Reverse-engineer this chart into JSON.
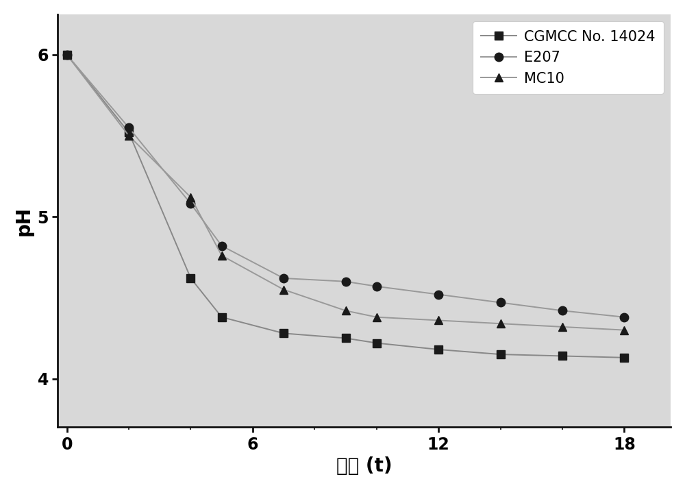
{
  "title": "",
  "xlabel": "时间 (t)",
  "ylabel": "pH",
  "xlim": [
    -0.3,
    19.5
  ],
  "ylim": [
    3.7,
    6.25
  ],
  "xticks": [
    0,
    6,
    12,
    18
  ],
  "yticks": [
    4,
    5,
    6
  ],
  "plot_bg_color": "#d8d8d8",
  "fig_bg_color": "#ffffff",
  "series": [
    {
      "label": "CGMCC No. 14024",
      "marker": "s",
      "color": "#1a1a1a",
      "line_color": "#888888",
      "x": [
        0,
        2,
        4,
        5,
        7,
        9,
        10,
        12,
        14,
        16,
        18
      ],
      "y": [
        6.0,
        5.52,
        4.62,
        4.38,
        4.28,
        4.25,
        4.22,
        4.18,
        4.15,
        4.14,
        4.13
      ]
    },
    {
      "label": "E207",
      "marker": "o",
      "color": "#1a1a1a",
      "line_color": "#999999",
      "x": [
        0,
        2,
        4,
        5,
        7,
        9,
        10,
        12,
        14,
        16,
        18
      ],
      "y": [
        6.0,
        5.55,
        5.08,
        4.82,
        4.62,
        4.6,
        4.57,
        4.52,
        4.47,
        4.42,
        4.38
      ]
    },
    {
      "label": "MC10",
      "marker": "^",
      "color": "#1a1a1a",
      "line_color": "#999999",
      "x": [
        0,
        2,
        4,
        5,
        7,
        9,
        10,
        12,
        14,
        16,
        18
      ],
      "y": [
        6.0,
        5.5,
        5.12,
        4.76,
        4.55,
        4.42,
        4.38,
        4.36,
        4.34,
        4.32,
        4.3
      ]
    }
  ],
  "legend_loc": "upper right",
  "marker_size": 9,
  "line_width": 1.4,
  "axis_linewidth": 2.0,
  "font_size_label": 20,
  "font_size_tick": 17,
  "font_size_legend": 15
}
